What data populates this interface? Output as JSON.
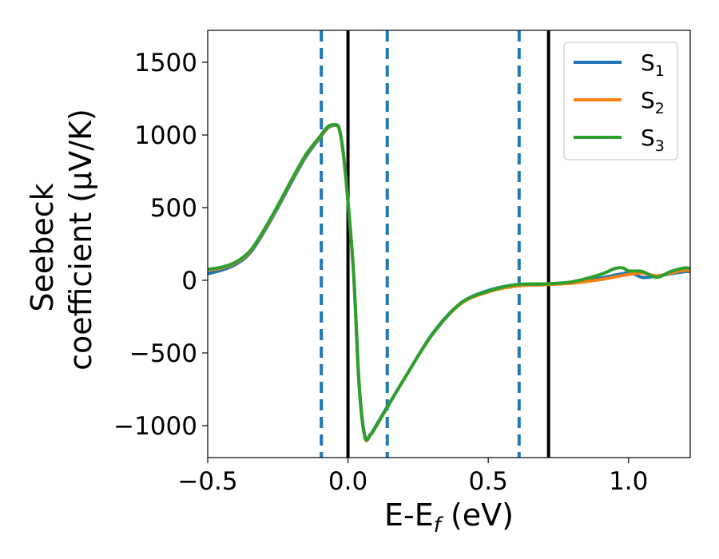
{
  "chart_data": {
    "type": "line",
    "title": "",
    "xlabel": {
      "main": "E-E",
      "sub": "f",
      "unit": " (eV)"
    },
    "ylabel": {
      "line1": "Seebeck",
      "line2": "coefficient  (μV/K)"
    },
    "xlim": [
      -0.5,
      1.22
    ],
    "ylim": [
      -1220,
      1720
    ],
    "xticks": [
      -0.5,
      0.0,
      0.5,
      1.0
    ],
    "xtick_labels": [
      "−0.5",
      "0.0",
      "0.5",
      "1.0"
    ],
    "yticks": [
      -1000,
      -500,
      0,
      500,
      1000,
      1500
    ],
    "ytick_labels": [
      "−1000",
      "−500",
      "0",
      "500",
      "1000",
      "1500"
    ],
    "grid": false,
    "legend_position": "top-right",
    "vlines_solid": [
      0.0,
      0.715
    ],
    "vlines_dashed": [
      -0.095,
      0.14,
      0.61
    ],
    "vline_colors": {
      "solid": "#000000",
      "dashed": "#1f77b4"
    },
    "series": [
      {
        "name": "S",
        "sub": "1",
        "color": "#1f77b4",
        "x": [
          -0.5,
          -0.45,
          -0.4,
          -0.35,
          -0.3,
          -0.25,
          -0.2,
          -0.15,
          -0.1,
          -0.07,
          -0.04,
          -0.03,
          -0.02,
          -0.01,
          0.0,
          0.02,
          0.04,
          0.06,
          0.08,
          0.1,
          0.14,
          0.2,
          0.3,
          0.4,
          0.5,
          0.6,
          0.7,
          0.8,
          0.9,
          1.0,
          1.05,
          1.1,
          1.15,
          1.2,
          1.22
        ],
        "y": [
          45,
          70,
          110,
          185,
          330,
          500,
          680,
          850,
          980,
          1050,
          1065,
          1030,
          920,
          750,
          540,
          50,
          -720,
          -1070,
          -1060,
          -1000,
          -870,
          -680,
          -370,
          -160,
          -70,
          -30,
          -25,
          -15,
          15,
          50,
          20,
          30,
          45,
          60,
          60
        ]
      },
      {
        "name": "S",
        "sub": "2",
        "color": "#ff7f0e",
        "x": [
          -0.5,
          -0.45,
          -0.4,
          -0.35,
          -0.3,
          -0.25,
          -0.2,
          -0.15,
          -0.1,
          -0.07,
          -0.04,
          -0.03,
          -0.02,
          -0.01,
          0.0,
          0.02,
          0.04,
          0.06,
          0.08,
          0.1,
          0.14,
          0.2,
          0.3,
          0.4,
          0.5,
          0.6,
          0.7,
          0.8,
          0.9,
          1.0,
          1.05,
          1.1,
          1.15,
          1.2,
          1.22
        ],
        "y": [
          70,
          85,
          120,
          195,
          340,
          510,
          690,
          860,
          985,
          1055,
          1068,
          1032,
          922,
          752,
          540,
          50,
          -730,
          -1080,
          -1065,
          -1005,
          -875,
          -680,
          -375,
          -165,
          -80,
          -40,
          -30,
          -20,
          5,
          40,
          50,
          30,
          50,
          70,
          65
        ]
      },
      {
        "name": "S",
        "sub": "3",
        "color": "#2ca02c",
        "x": [
          -0.5,
          -0.45,
          -0.4,
          -0.35,
          -0.3,
          -0.25,
          -0.2,
          -0.15,
          -0.1,
          -0.07,
          -0.04,
          -0.03,
          -0.02,
          -0.01,
          0.0,
          0.02,
          0.04,
          0.06,
          0.08,
          0.1,
          0.14,
          0.2,
          0.3,
          0.4,
          0.5,
          0.6,
          0.7,
          0.8,
          0.9,
          0.95,
          0.98,
          1.0,
          1.05,
          1.1,
          1.15,
          1.2,
          1.22
        ],
        "y": [
          75,
          90,
          125,
          200,
          345,
          515,
          695,
          865,
          990,
          1060,
          1070,
          1035,
          925,
          755,
          540,
          50,
          -730,
          -1075,
          -1065,
          -1005,
          -875,
          -680,
          -375,
          -160,
          -75,
          -30,
          -25,
          -10,
          40,
          80,
          85,
          65,
          60,
          20,
          60,
          85,
          80
        ]
      }
    ]
  }
}
